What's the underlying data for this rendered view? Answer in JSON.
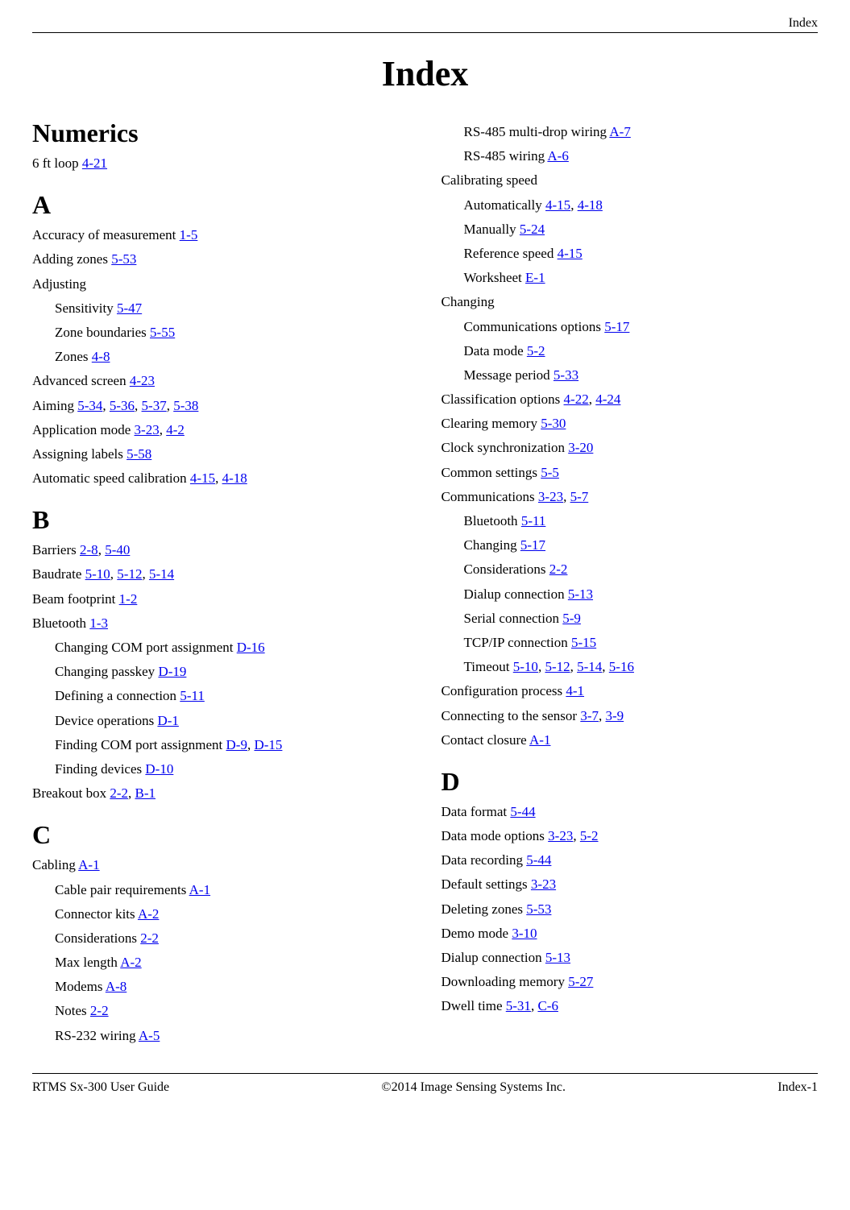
{
  "header": {
    "label": "Index"
  },
  "title": "Index",
  "footer": {
    "left": "RTMS Sx-300 User Guide",
    "center": "©2014 Image Sensing Systems Inc.",
    "right": "Index-1"
  },
  "sections_left": [
    {
      "heading": "Numerics",
      "entries": [
        {
          "label": "6 ft loop ",
          "refs": [
            "4-21"
          ]
        }
      ]
    },
    {
      "heading": "A",
      "entries": [
        {
          "label": "Accuracy of measurement ",
          "refs": [
            "1-5"
          ]
        },
        {
          "label": "Adding zones ",
          "refs": [
            "5-53"
          ]
        },
        {
          "label": "Adjusting",
          "refs": []
        },
        {
          "label": "Sensitivity ",
          "refs": [
            "5-47"
          ],
          "sub": true
        },
        {
          "label": "Zone boundaries ",
          "refs": [
            "5-55"
          ],
          "sub": true
        },
        {
          "label": "Zones ",
          "refs": [
            "4-8"
          ],
          "sub": true
        },
        {
          "label": "Advanced screen ",
          "refs": [
            "4-23"
          ]
        },
        {
          "label": "Aiming ",
          "refs": [
            "5-34",
            "5-36",
            "5-37",
            "5-38"
          ]
        },
        {
          "label": "Application mode ",
          "refs": [
            "3-23",
            "4-2"
          ]
        },
        {
          "label": "Assigning labels ",
          "refs": [
            "5-58"
          ]
        },
        {
          "label": "Automatic speed calibration ",
          "refs": [
            "4-15",
            "4-18"
          ]
        }
      ]
    },
    {
      "heading": "B",
      "entries": [
        {
          "label": "Barriers ",
          "refs": [
            "2-8",
            "5-40"
          ]
        },
        {
          "label": "Baudrate ",
          "refs": [
            "5-10",
            "5-12",
            "5-14"
          ]
        },
        {
          "label": "Beam footprint ",
          "refs": [
            "1-2"
          ]
        },
        {
          "label": "Bluetooth ",
          "refs": [
            "1-3"
          ]
        },
        {
          "label": "Changing COM port assignment ",
          "refs": [
            "D-16"
          ],
          "sub": true
        },
        {
          "label": "Changing passkey ",
          "refs": [
            "D-19"
          ],
          "sub": true
        },
        {
          "label": "Defining a connection ",
          "refs": [
            "5-11"
          ],
          "sub": true
        },
        {
          "label": "Device operations ",
          "refs": [
            "D-1"
          ],
          "sub": true
        },
        {
          "label": "Finding COM port assignment ",
          "refs": [
            "D-9",
            "D-15"
          ],
          "sub": true
        },
        {
          "label": "Finding devices ",
          "refs": [
            "D-10"
          ],
          "sub": true
        },
        {
          "label": "Breakout box ",
          "refs": [
            "2-2",
            "B-1"
          ]
        }
      ]
    },
    {
      "heading": "C",
      "entries": [
        {
          "label": "Cabling ",
          "refs": [
            "A-1"
          ]
        },
        {
          "label": "Cable pair requirements ",
          "refs": [
            "A-1"
          ],
          "sub": true
        },
        {
          "label": "Connector kits ",
          "refs": [
            "A-2"
          ],
          "sub": true
        },
        {
          "label": "Considerations ",
          "refs": [
            "2-2"
          ],
          "sub": true
        },
        {
          "label": "Max length ",
          "refs": [
            "A-2"
          ],
          "sub": true
        },
        {
          "label": "Modems ",
          "refs": [
            "A-8"
          ],
          "sub": true
        },
        {
          "label": "Notes ",
          "refs": [
            "2-2"
          ],
          "sub": true
        },
        {
          "label": "RS-232 wiring ",
          "refs": [
            "A-5"
          ],
          "sub": true
        }
      ]
    }
  ],
  "sections_right": [
    {
      "heading": null,
      "entries": [
        {
          "label": "RS-485 multi-drop wiring ",
          "refs": [
            "A-7"
          ],
          "sub": true
        },
        {
          "label": "RS-485 wiring ",
          "refs": [
            "A-6"
          ],
          "sub": true
        },
        {
          "label": "Calibrating speed",
          "refs": []
        },
        {
          "label": "Automatically ",
          "refs": [
            "4-15",
            "4-18"
          ],
          "sub": true
        },
        {
          "label": "Manually ",
          "refs": [
            "5-24"
          ],
          "sub": true
        },
        {
          "label": "Reference speed ",
          "refs": [
            "4-15"
          ],
          "sub": true
        },
        {
          "label": "Worksheet ",
          "refs": [
            "E-1"
          ],
          "sub": true
        },
        {
          "label": "Changing",
          "refs": []
        },
        {
          "label": "Communications options ",
          "refs": [
            "5-17"
          ],
          "sub": true
        },
        {
          "label": "Data mode ",
          "refs": [
            "5-2"
          ],
          "sub": true
        },
        {
          "label": "Message period ",
          "refs": [
            "5-33"
          ],
          "sub": true
        },
        {
          "label": "Classification options ",
          "refs": [
            "4-22",
            "4-24"
          ]
        },
        {
          "label": "Clearing memory ",
          "refs": [
            "5-30"
          ]
        },
        {
          "label": "Clock synchronization ",
          "refs": [
            "3-20"
          ]
        },
        {
          "label": "Common settings ",
          "refs": [
            "5-5"
          ]
        },
        {
          "label": "Communications ",
          "refs": [
            "3-23",
            "5-7"
          ]
        },
        {
          "label": "Bluetooth ",
          "refs": [
            "5-11"
          ],
          "sub": true
        },
        {
          "label": "Changing ",
          "refs": [
            "5-17"
          ],
          "sub": true
        },
        {
          "label": "Considerations ",
          "refs": [
            "2-2"
          ],
          "sub": true
        },
        {
          "label": "Dialup connection ",
          "refs": [
            "5-13"
          ],
          "sub": true
        },
        {
          "label": "Serial connection ",
          "refs": [
            "5-9"
          ],
          "sub": true
        },
        {
          "label": "TCP/IP connection ",
          "refs": [
            "5-15"
          ],
          "sub": true
        },
        {
          "label": "Timeout ",
          "refs": [
            "5-10",
            "5-12",
            "5-14",
            "5-16"
          ],
          "sub": true
        },
        {
          "label": "Configuration process ",
          "refs": [
            "4-1"
          ]
        },
        {
          "label": "Connecting to the sensor ",
          "refs": [
            "3-7",
            "3-9"
          ]
        },
        {
          "label": "Contact closure ",
          "refs": [
            "A-1"
          ]
        }
      ]
    },
    {
      "heading": "D",
      "entries": [
        {
          "label": "Data format ",
          "refs": [
            "5-44"
          ]
        },
        {
          "label": "Data mode options ",
          "refs": [
            "3-23",
            "5-2"
          ]
        },
        {
          "label": "Data recording ",
          "refs": [
            "5-44"
          ]
        },
        {
          "label": "Default settings ",
          "refs": [
            "3-23"
          ]
        },
        {
          "label": "Deleting zones ",
          "refs": [
            "5-53"
          ]
        },
        {
          "label": "Demo mode ",
          "refs": [
            "3-10"
          ]
        },
        {
          "label": "Dialup connection ",
          "refs": [
            "5-13"
          ]
        },
        {
          "label": "Downloading memory ",
          "refs": [
            "5-27"
          ]
        },
        {
          "label": "Dwell time ",
          "refs": [
            "5-31",
            "C-6"
          ]
        }
      ]
    }
  ]
}
